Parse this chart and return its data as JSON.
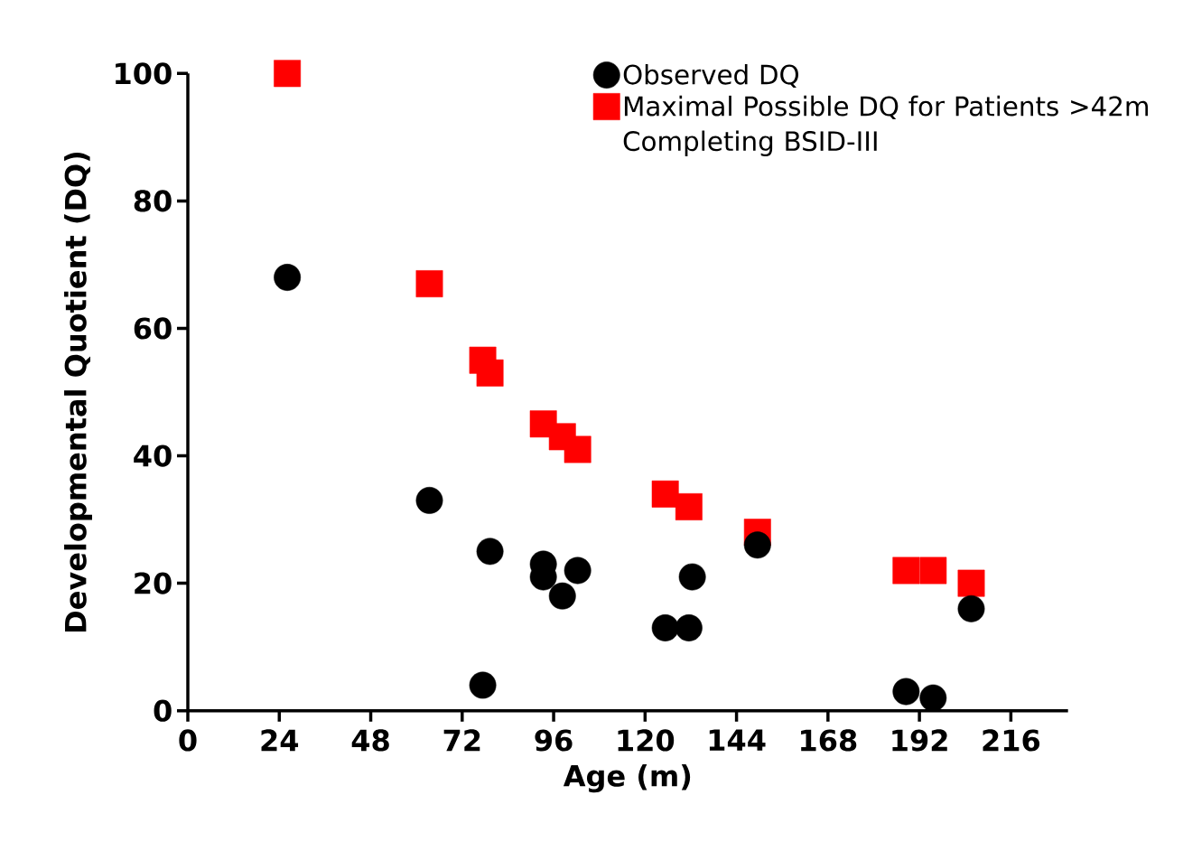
{
  "chart_data": {
    "type": "scatter",
    "xlabel": "Age (m)",
    "ylabel": "Developmental Quotient (DQ)",
    "xlim": [
      0,
      231
    ],
    "ylim": [
      0,
      100
    ],
    "xticks": [
      0,
      24,
      48,
      72,
      96,
      120,
      144,
      168,
      192,
      216
    ],
    "yticks": [
      0,
      20,
      40,
      60,
      80,
      100
    ],
    "grid": false,
    "legend": "top right",
    "series": [
      {
        "name": "Observed DQ",
        "color": "#000000",
        "marker": "circle",
        "x": [
          26.1,
          63.4,
          79.3,
          77.4,
          93.3,
          93.3,
          98.3,
          102.3,
          125.3,
          131.5,
          132.4,
          149.5,
          188.5,
          195.6,
          205.6
        ],
        "values": [
          68,
          33,
          25,
          4,
          23,
          21,
          18,
          22,
          13,
          13,
          21,
          26,
          3,
          2,
          16
        ]
      },
      {
        "name": "Maximal Possible DQ for Patients >42m Completing BSID-III",
        "color": "#ff0000",
        "marker": "square",
        "x": [
          26.1,
          63.4,
          77.4,
          79.3,
          93.3,
          98.3,
          102.3,
          125.3,
          131.5,
          149.5,
          188.5,
          195.6,
          205.6
        ],
        "values": [
          100,
          67,
          55,
          53,
          45,
          43,
          41,
          34,
          32,
          28,
          22,
          22,
          20
        ]
      }
    ]
  }
}
